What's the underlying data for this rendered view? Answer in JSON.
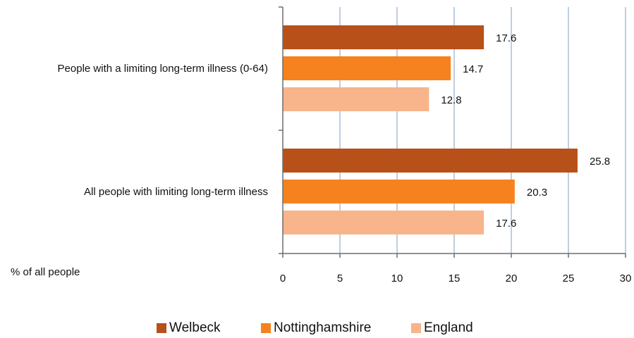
{
  "chart_data": {
    "type": "bar",
    "orientation": "horizontal",
    "categories": [
      "People with a limiting long-term illness (0-64)",
      "All people with limiting long-term illness"
    ],
    "series": [
      {
        "name": "Welbeck",
        "values": [
          17.6,
          25.8
        ],
        "color": "#b85019"
      },
      {
        "name": "Nottinghamshire",
        "values": [
          14.7,
          20.3
        ],
        "color": "#f6821f"
      },
      {
        "name": "England",
        "values": [
          12.8,
          17.6
        ],
        "color": "#f8b48a"
      }
    ],
    "data_labels": [
      [
        "17.6",
        "25.8"
      ],
      [
        "14.7",
        "20.3"
      ],
      [
        "12.8",
        "17.6"
      ]
    ],
    "xlabel": "% of all people",
    "xlim": [
      0,
      30
    ],
    "xticks": [
      0,
      5,
      10,
      15,
      20,
      25,
      30
    ],
    "grid": true,
    "legend": "bottom"
  }
}
